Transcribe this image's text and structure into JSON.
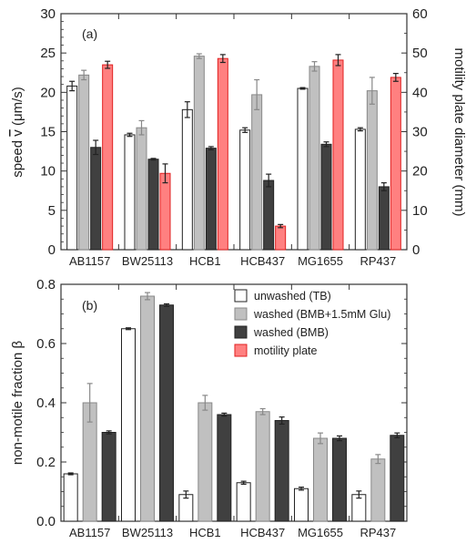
{
  "colors": {
    "unwashed_fill": "#ffffff",
    "washed_bmb_glu_fill": "#c0c0c0",
    "washed_bmb_fill": "#404040",
    "motility_plate_fill": "#ff8080",
    "motility_plate_stroke": "#e02020",
    "axis": "#333333",
    "errorbar_light": "#888888",
    "errorbar_dark": "#222222"
  },
  "chart_data": [
    {
      "type": "bar",
      "panel": "(a)",
      "categories": [
        "AB1157",
        "BW25113",
        "HCB1",
        "HCB437",
        "MG1655",
        "RP437"
      ],
      "ylabel": "speed v̄ (μm/s)",
      "ylabel_parts": {
        "pre": "speed ",
        "var": "v",
        "post": " (μm/s)"
      },
      "ylabel_right": "motility plate diameter (mm)",
      "ylim": [
        0,
        30
      ],
      "yticks": [
        "0",
        "5",
        "10",
        "15",
        "20",
        "25",
        "30"
      ],
      "ylim_right": [
        0,
        60
      ],
      "yticks_right": [
        "0",
        "10",
        "20",
        "30",
        "40",
        "50",
        "60"
      ],
      "series": [
        {
          "name": "unwashed (TB)",
          "values": [
            20.8,
            14.6,
            17.8,
            15.2,
            20.5,
            15.3
          ],
          "errors": [
            0.6,
            0.2,
            1.0,
            0.3,
            0.1,
            0.2
          ]
        },
        {
          "name": "washed (BMB+1.5mM Glu)",
          "values": [
            22.2,
            15.5,
            24.6,
            19.7,
            23.3,
            20.2
          ],
          "errors": [
            0.6,
            0.9,
            0.3,
            1.9,
            0.6,
            1.7
          ]
        },
        {
          "name": "washed (BMB)",
          "values": [
            13.0,
            11.5,
            12.9,
            8.8,
            13.4,
            8.0
          ],
          "errors": [
            0.9,
            0.1,
            0.2,
            0.8,
            0.3,
            0.5
          ]
        },
        {
          "name": "motility plate",
          "axis": "right",
          "values": [
            47.0,
            19.4,
            48.6,
            6.0,
            48.2,
            43.8
          ],
          "errors": [
            0.9,
            2.4,
            1.0,
            0.4,
            1.4,
            1.0
          ]
        }
      ]
    },
    {
      "type": "bar",
      "panel": "(b)",
      "categories": [
        "AB1157",
        "BW25113",
        "HCB1",
        "HCB437",
        "MG1655",
        "RP437"
      ],
      "ylabel": "non-motile fraction β",
      "ylim": [
        0,
        0.8
      ],
      "yticks": [
        "0.0",
        "0.2",
        "0.4",
        "0.6",
        "0.8"
      ],
      "series": [
        {
          "name": "unwashed (TB)",
          "values": [
            0.16,
            0.65,
            0.09,
            0.13,
            0.11,
            0.09
          ],
          "errors": [
            0.003,
            0.003,
            0.012,
            0.005,
            0.005,
            0.012
          ]
        },
        {
          "name": "washed (BMB+1.5mM Glu)",
          "values": [
            0.4,
            0.76,
            0.4,
            0.37,
            0.28,
            0.21
          ],
          "errors": [
            0.065,
            0.012,
            0.025,
            0.01,
            0.018,
            0.015
          ]
        },
        {
          "name": "washed (BMB)",
          "values": [
            0.3,
            0.73,
            0.36,
            0.34,
            0.28,
            0.29
          ],
          "errors": [
            0.005,
            0.004,
            0.005,
            0.012,
            0.008,
            0.008
          ]
        }
      ],
      "legend": [
        "unwashed (TB)",
        "washed (BMB+1.5mM Glu)",
        "washed (BMB)",
        "motility plate"
      ]
    }
  ]
}
